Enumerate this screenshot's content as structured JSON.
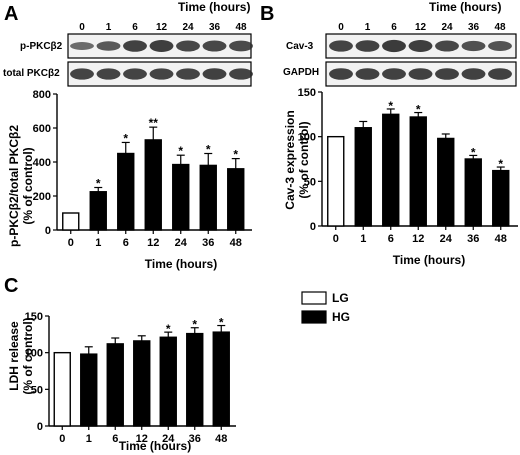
{
  "figure": {
    "panel_labels": [
      "A",
      "B",
      "C"
    ],
    "legend": [
      {
        "label": "LG",
        "fill": "#ffffff"
      },
      {
        "label": "HG",
        "fill": "#000000"
      }
    ]
  },
  "chart_data": [
    {
      "panel": "A",
      "type": "bar",
      "blot_header": "Time (hours)",
      "blot_labels": [
        "p-PKCβ2",
        "total PKCβ2"
      ],
      "categories": [
        "0",
        "1",
        "6",
        "12",
        "24",
        "36",
        "48"
      ],
      "values": [
        100,
        225,
        450,
        530,
        385,
        380,
        360
      ],
      "errors": [
        0,
        25,
        65,
        75,
        55,
        70,
        60
      ],
      "significance": [
        "",
        "*",
        "*",
        "**",
        "*",
        "*",
        "*"
      ],
      "fills": [
        "#ffffff",
        "#000000",
        "#000000",
        "#000000",
        "#000000",
        "#000000",
        "#000000"
      ],
      "xlabel": "Time (hours)",
      "ylabel": "p-PKCβ2/total PKCβ2",
      "ylabel2": "(% of control)",
      "ylim": [
        0,
        800
      ],
      "yticks": [
        0,
        200,
        400,
        600,
        800
      ]
    },
    {
      "panel": "B",
      "type": "bar",
      "blot_header": "Time (hours)",
      "blot_labels": [
        "Cav-3",
        "GAPDH"
      ],
      "categories": [
        "0",
        "1",
        "6",
        "12",
        "24",
        "36",
        "48"
      ],
      "values": [
        100,
        110,
        125,
        122,
        98,
        75,
        62
      ],
      "errors": [
        0,
        7,
        6,
        5,
        5,
        4,
        4
      ],
      "significance": [
        "",
        "",
        "*",
        "*",
        "",
        "*",
        "*"
      ],
      "fills": [
        "#ffffff",
        "#000000",
        "#000000",
        "#000000",
        "#000000",
        "#000000",
        "#000000"
      ],
      "xlabel": "Time (hours)",
      "ylabel": "Cav-3 expression",
      "ylabel2": "(% of control)",
      "ylim": [
        0,
        150
      ],
      "yticks": [
        0,
        50,
        100,
        150
      ]
    },
    {
      "panel": "C",
      "type": "bar",
      "categories": [
        "0",
        "1",
        "6",
        "12",
        "24",
        "36",
        "48"
      ],
      "values": [
        100,
        98,
        112,
        116,
        121,
        126,
        128
      ],
      "errors": [
        0,
        10,
        8,
        7,
        7,
        8,
        9
      ],
      "significance": [
        "",
        "",
        "",
        "",
        "*",
        "*",
        "*"
      ],
      "fills": [
        "#ffffff",
        "#000000",
        "#000000",
        "#000000",
        "#000000",
        "#000000",
        "#000000"
      ],
      "xlabel": "Time (hours)",
      "ylabel": "LDH release",
      "ylabel2": "(% of  control)",
      "ylim": [
        0,
        150
      ],
      "yticks": [
        0,
        50,
        100,
        150
      ]
    }
  ]
}
